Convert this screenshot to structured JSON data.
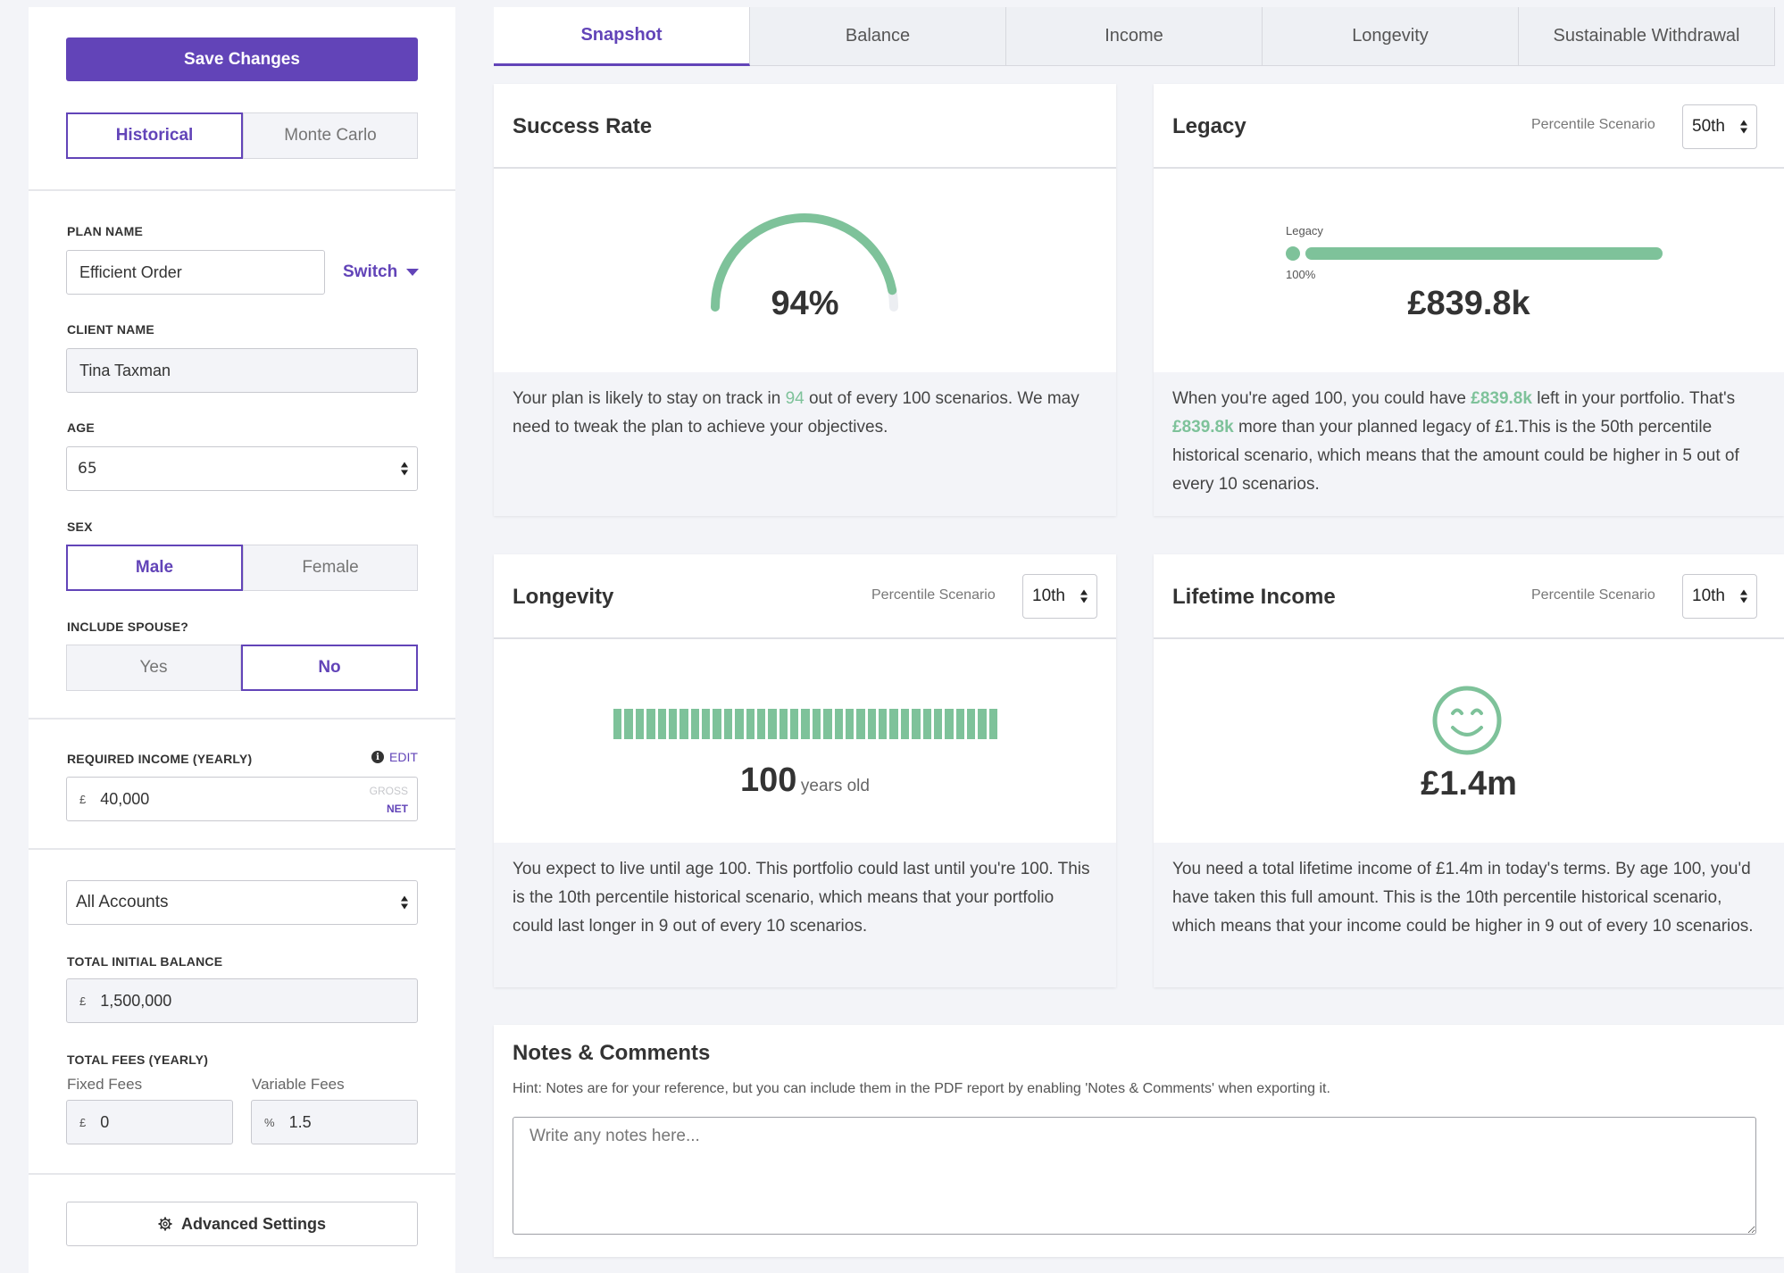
{
  "sidebar": {
    "save_label": "Save Changes",
    "mode_options": [
      "Historical",
      "Monte Carlo"
    ],
    "mode_selected": "Historical",
    "plan_name_label": "PLAN NAME",
    "plan_name_value": "Efficient Order",
    "switch_label": "Switch",
    "client_name_label": "CLIENT NAME",
    "client_name_value": "Tina Taxman",
    "age_label": "AGE",
    "age_value": "65",
    "sex_label": "SEX",
    "sex_options": [
      "Male",
      "Female"
    ],
    "sex_selected": "Male",
    "spouse_label": "INCLUDE SPOUSE?",
    "spouse_options": [
      "Yes",
      "No"
    ],
    "spouse_selected": "No",
    "income_label": "REQUIRED INCOME (YEARLY)",
    "edit_label": "EDIT",
    "info_glyph": "i",
    "currency_symbol": "£",
    "income_value": "40,000",
    "gross_label": "GROSS",
    "net_label": "NET",
    "accounts_value": "All Accounts",
    "balance_label": "TOTAL INITIAL BALANCE",
    "balance_value": "1,500,000",
    "fees_label": "TOTAL FEES (YEARLY)",
    "fixed_fees_label": "Fixed Fees",
    "fixed_fees_value": "0",
    "variable_fees_label": "Variable Fees",
    "percent_symbol": "%",
    "variable_fees_value": "1.5",
    "advanced_label": "Advanced Settings"
  },
  "tabs": [
    {
      "label": "Snapshot",
      "active": true
    },
    {
      "label": "Balance",
      "active": false
    },
    {
      "label": "Income",
      "active": false
    },
    {
      "label": "Longevity",
      "active": false
    },
    {
      "label": "Sustainable Withdrawal",
      "active": false
    }
  ],
  "success_rate": {
    "title": "Success Rate",
    "value": "94%",
    "fraction": 0.94,
    "text_before": "Your plan is likely to stay on track in ",
    "highlight": "94",
    "text_after": " out of every 100 scenarios. We may need to tweak the plan to achieve your objectives."
  },
  "legacy": {
    "title": "Legacy",
    "percentile_label": "Percentile Scenario",
    "percentile_value": "50th",
    "bar_label": "Legacy",
    "bar_percent": "100%",
    "value": "£839.8k",
    "text_1": "When you're aged 100, you could have ",
    "highlight_1": "£839.8k",
    "text_2": " left in your portfolio. That's ",
    "highlight_2": "£839.8k",
    "text_3": " more than your planned legacy of £1.This is the 50th percentile historical scenario, which means that the amount could be higher in 5 out of every 10 scenarios."
  },
  "longevity": {
    "title": "Longevity",
    "percentile_label": "Percentile Scenario",
    "percentile_value": "10th",
    "value": "100",
    "unit": "years old",
    "text": "You expect to live until age 100. This portfolio could last until you're 100. This is the 10th percentile historical scenario, which means that your portfolio could last longer in 9 out of every 10 scenarios."
  },
  "lifetime_income": {
    "title": "Lifetime Income",
    "percentile_label": "Percentile Scenario",
    "percentile_value": "10th",
    "icon": "smiley-icon",
    "value": "£1.4m",
    "text": "You need a total lifetime income of £1.4m in today's terms. By age 100, you'd have taken this full amount. This is the 10th percentile historical scenario, which means that your income could be higher in 9 out of every 10 scenarios."
  },
  "notes": {
    "title": "Notes & Comments",
    "hint": "Hint: Notes are for your reference, but you can include them in the PDF report by enabling 'Notes & Comments' when exporting it.",
    "placeholder": "Write any notes here..."
  },
  "colors": {
    "accent": "#6244b8",
    "success_green": "#7ec29a",
    "background": "#f3f4f8"
  }
}
